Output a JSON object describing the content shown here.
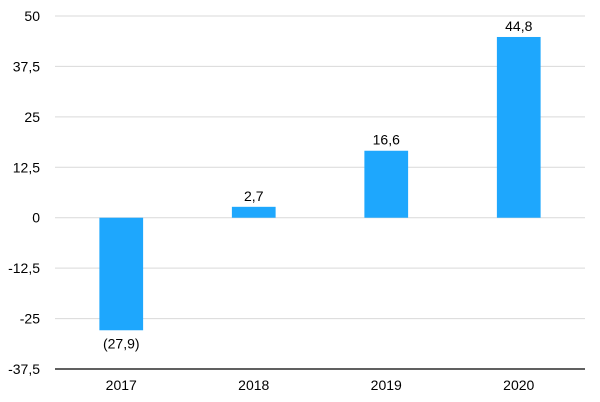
{
  "chart_data": {
    "type": "bar",
    "title": "",
    "xlabel": "",
    "ylabel": "",
    "categories": [
      "2017",
      "2018",
      "2019",
      "2020"
    ],
    "series": [
      {
        "values": [
          -27.9,
          2.7,
          16.6,
          44.8
        ],
        "data_labels": [
          "(27,9)",
          "2,7",
          "16,6",
          "44,8"
        ],
        "color": "#1ea7fd"
      }
    ],
    "ylim": [
      -37.5,
      50
    ],
    "yticks": [
      50,
      37.5,
      25,
      12.5,
      0,
      -12.5,
      -25,
      -37.5
    ],
    "ytick_labels": [
      "50",
      "37,5",
      "25",
      "12,5",
      "0",
      "-12,5",
      "-25",
      "-37,5"
    ],
    "grid": true,
    "legend": "none"
  }
}
